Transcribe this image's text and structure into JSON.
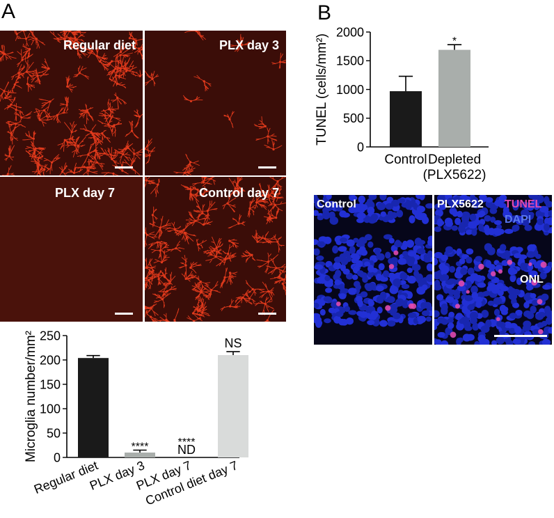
{
  "panels": {
    "a": "A",
    "b": "B"
  },
  "micrographs": [
    {
      "label": "Regular diet"
    },
    {
      "label": "PLX day 3"
    },
    {
      "label": "PLX day 7"
    },
    {
      "label": "Control day 7"
    }
  ],
  "fluorescence": {
    "left_label": "Control",
    "right_label": "PLX5622",
    "channel_tunel": "TUNEL",
    "channel_dapi": "DAPI",
    "layer_label": "ONL"
  },
  "colors": {
    "microglia": "#e23a1c",
    "tissue_bg": "#3b0d08",
    "dapi": "#1f2bd8",
    "tunel": "#e04ab0",
    "bar_black": "#1a1a1a",
    "bar_gray": "#a9aeab",
    "bar_lightgray": "#d9dbda"
  },
  "chart_data": [
    {
      "type": "bar",
      "ylabel": "Microglia number/mm²",
      "categories": [
        "Regular diet",
        "PLX day 3",
        "PLX day 7",
        "Control diet day 7"
      ],
      "values": [
        204,
        10,
        0,
        210
      ],
      "errors": [
        5,
        5,
        0,
        7
      ],
      "annotations": [
        "",
        "****",
        "****\nND",
        "NS"
      ],
      "bar_colors": [
        "#1a1a1a",
        "#a9aeab",
        "#a9aeab",
        "#d9dbda"
      ],
      "ylim": [
        0,
        250
      ],
      "yticks": [
        0,
        50,
        100,
        150,
        200,
        250
      ]
    },
    {
      "type": "bar",
      "ylabel": "TUNEL (cells/mm²)",
      "categories": [
        "Control",
        "Depleted\n(PLX5622)"
      ],
      "values": [
        970,
        1690
      ],
      "errors": [
        260,
        90
      ],
      "annotations": [
        "",
        "*"
      ],
      "bar_colors": [
        "#1a1a1a",
        "#a9aeab"
      ],
      "ylim": [
        0,
        2000
      ],
      "yticks": [
        0,
        500,
        1000,
        1500,
        2000
      ]
    }
  ]
}
